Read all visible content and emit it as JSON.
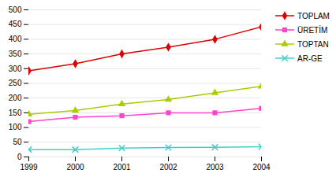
{
  "chart_data": {
    "type": "line",
    "x": [
      1999,
      2000,
      2001,
      2002,
      2003,
      2004
    ],
    "series": [
      {
        "name": "TOPLAM",
        "color": "#dd0000",
        "marker": "diamond",
        "values": [
          293,
          317,
          350,
          373,
          400,
          442
        ]
      },
      {
        "name": "ÜRETİM",
        "color": "#ff44cc",
        "marker": "square",
        "values": [
          120,
          135,
          140,
          150,
          150,
          165
        ]
      },
      {
        "name": "TOPTAN",
        "color": "#aacc00",
        "marker": "triangle",
        "values": [
          145,
          158,
          180,
          195,
          218,
          240
        ]
      },
      {
        "name": "AR-GE",
        "color": "#44cccc",
        "marker": "x",
        "values": [
          25,
          25,
          30,
          32,
          33,
          35
        ]
      }
    ],
    "xlim": [
      1999,
      2004
    ],
    "xticks": [
      1999,
      2000,
      2001,
      2002,
      2003,
      2004
    ],
    "ylim": [
      0,
      500
    ],
    "yticks": [
      0,
      50,
      100,
      150,
      200,
      250,
      300,
      350,
      400,
      450,
      500
    ],
    "grid": true,
    "legend": "right"
  }
}
